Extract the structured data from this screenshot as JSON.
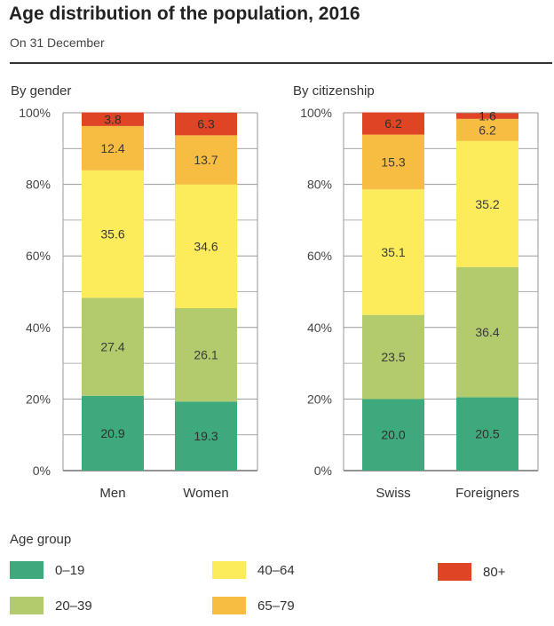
{
  "header": {
    "title": "Age distribution of the population, 2016",
    "subtitle": "On 31 December"
  },
  "legend": {
    "title": "Age group",
    "items": [
      {
        "label": "0–19",
        "color": "#3ea97b"
      },
      {
        "label": "20–39",
        "color": "#b2cb6c"
      },
      {
        "label": "40–64",
        "color": "#fcec5b"
      },
      {
        "label": "65–79",
        "color": "#f7bd43"
      },
      {
        "label": "80+",
        "color": "#df4425"
      }
    ]
  },
  "chart_data": [
    {
      "type": "bar",
      "stacked": true,
      "title": "By gender",
      "categories": [
        "Men",
        "Women"
      ],
      "ylim": [
        0,
        100
      ],
      "yticks": [
        "0%",
        "20%",
        "40%",
        "60%",
        "80%",
        "100%"
      ],
      "grid": true,
      "series": [
        {
          "name": "0–19",
          "values": [
            20.9,
            19.3
          ]
        },
        {
          "name": "20–39",
          "values": [
            27.4,
            26.1
          ]
        },
        {
          "name": "40–64",
          "values": [
            35.6,
            34.6
          ]
        },
        {
          "name": "65–79",
          "values": [
            12.4,
            13.7
          ]
        },
        {
          "name": "80+",
          "values": [
            3.8,
            6.3
          ]
        }
      ]
    },
    {
      "type": "bar",
      "stacked": true,
      "title": "By citizenship",
      "categories": [
        "Swiss",
        "Foreigners"
      ],
      "ylim": [
        0,
        100
      ],
      "yticks": [
        "0%",
        "20%",
        "40%",
        "60%",
        "80%",
        "100%"
      ],
      "grid": true,
      "series": [
        {
          "name": "0–19",
          "values": [
            20.0,
            20.5
          ]
        },
        {
          "name": "20–39",
          "values": [
            23.5,
            36.4
          ]
        },
        {
          "name": "40–64",
          "values": [
            35.1,
            35.2
          ]
        },
        {
          "name": "65–79",
          "values": [
            15.3,
            6.2
          ]
        },
        {
          "name": "80+",
          "values": [
            6.2,
            1.6
          ]
        }
      ]
    }
  ]
}
